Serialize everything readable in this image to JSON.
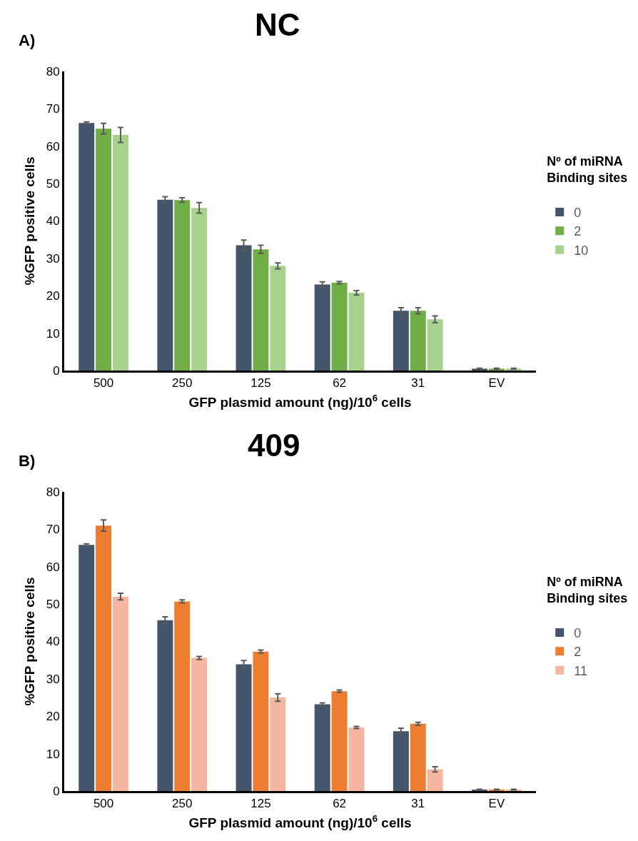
{
  "chart_data": [
    {
      "type": "bar",
      "title": "NC",
      "annotations": [
        "A)"
      ],
      "xlabel": "GFP plasmid amount (ng)/10$^{6}$ cells",
      "ylabel": "%GFP positive cells",
      "legend_title": "Nº of miRNA\nBinding sites",
      "legend": "right",
      "grid": false,
      "categories": [
        "500",
        "250",
        "125",
        "62",
        "31",
        "EV"
      ],
      "ylim": [
        0,
        80
      ],
      "yticks": [
        0,
        10,
        20,
        30,
        40,
        50,
        60,
        70,
        80
      ],
      "series": [
        {
          "name": "0",
          "color": "#44546a",
          "values": [
            66.2,
            45.7,
            33.5,
            23.0,
            16.0,
            0.5
          ],
          "errors": [
            0.3,
            0.8,
            1.4,
            0.7,
            0.8,
            0.1
          ]
        },
        {
          "name": "2",
          "color": "#70ad47",
          "values": [
            64.7,
            45.6,
            32.4,
            23.5,
            16.0,
            0.5
          ],
          "errors": [
            1.4,
            0.6,
            1.1,
            0.3,
            0.8,
            0.1
          ]
        },
        {
          "name": "10",
          "color": "#a9d18e",
          "values": [
            63.0,
            43.5,
            28.0,
            20.8,
            13.7,
            0.5
          ],
          "errors": [
            2.0,
            1.4,
            0.8,
            0.6,
            0.9,
            0.1
          ]
        }
      ]
    },
    {
      "type": "bar",
      "title": "409",
      "annotations": [
        "B)"
      ],
      "xlabel": "GFP plasmid amount (ng)/10$^{6}$ cells",
      "ylabel": "%GFP positive cells",
      "legend_title": "Nº of miRNA\nBinding sites",
      "legend": "right",
      "grid": false,
      "categories": [
        "500",
        "250",
        "125",
        "62",
        "31",
        "EV"
      ],
      "ylim": [
        0,
        80
      ],
      "yticks": [
        0,
        10,
        20,
        30,
        40,
        50,
        60,
        70,
        80
      ],
      "series": [
        {
          "name": "0",
          "color": "#44546a",
          "values": [
            65.8,
            45.7,
            33.9,
            23.2,
            16.0,
            0.4
          ],
          "errors": [
            0.3,
            0.9,
            1.0,
            0.4,
            0.8,
            0.1
          ]
        },
        {
          "name": "2",
          "color": "#ed7d31",
          "values": [
            71.0,
            50.7,
            37.3,
            26.7,
            18.0,
            0.4
          ],
          "errors": [
            1.5,
            0.4,
            0.4,
            0.3,
            0.4,
            0.1
          ]
        },
        {
          "name": "11",
          "color": "#f4b6a0",
          "values": [
            52.0,
            35.6,
            25.0,
            17.0,
            5.8,
            0.4
          ],
          "errors": [
            0.9,
            0.4,
            1.0,
            0.3,
            0.7,
            0.1
          ]
        }
      ]
    }
  ]
}
